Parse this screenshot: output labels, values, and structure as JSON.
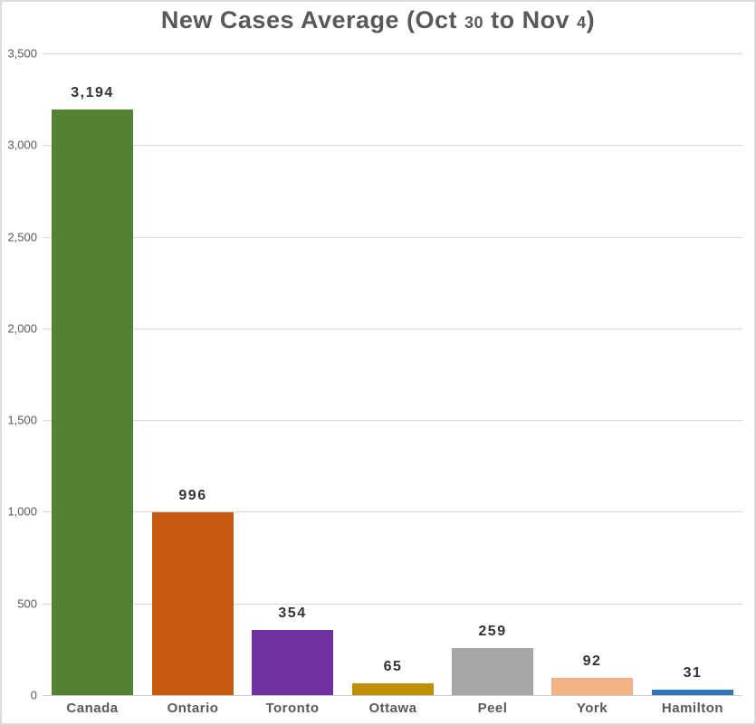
{
  "title": {
    "full": "New Cases Average (Oct 30 to Nov 4)",
    "parts": {
      "p1": "New Cases Average (Oct ",
      "p2": "30",
      "p3": " to Nov ",
      "p4": "4",
      "p5": ")"
    }
  },
  "chart_data": {
    "type": "bar",
    "title": "New Cases Average (Oct 30 to Nov 4)",
    "categories": [
      "Canada",
      "Ontario",
      "Toronto",
      "Ottawa",
      "Peel",
      "York",
      "Hamilton"
    ],
    "values": [
      3194,
      996,
      354,
      65,
      259,
      92,
      31
    ],
    "value_labels": [
      "3,194",
      "996",
      "354",
      "65",
      "259",
      "92",
      "31"
    ],
    "bar_colors": [
      "#548235",
      "#C55A11",
      "#7030A0",
      "#BF8F00",
      "#A6A6A6",
      "#F4B183",
      "#2E75B6"
    ],
    "xlabel": "",
    "ylabel": "",
    "ylim": [
      0,
      3500
    ],
    "y_tick_step": 500,
    "y_ticks": [
      {
        "label": "0",
        "value": 0
      },
      {
        "label": "500",
        "value": 500
      },
      {
        "label": "1,000",
        "value": 1000
      },
      {
        "label": "1,500",
        "value": 1500
      },
      {
        "label": "2,000",
        "value": 2000
      },
      {
        "label": "2,500",
        "value": 2500
      },
      {
        "label": "3,000",
        "value": 3000
      },
      {
        "label": "3,500",
        "value": 3500
      }
    ],
    "grid": true,
    "legend": false,
    "colors": {
      "gridline": "#d9d9d9",
      "axis_line": "#cfcfcf",
      "axis_text": "#595959",
      "value_label_text": "#333333",
      "title_text": "#595959"
    }
  }
}
